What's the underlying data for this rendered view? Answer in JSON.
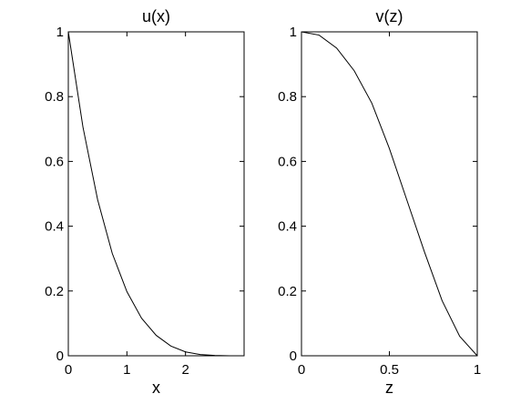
{
  "chart_data": [
    {
      "type": "line",
      "title": "u(x)",
      "x_label": "x",
      "x": [
        0,
        0.25,
        0.5,
        0.75,
        1,
        1.25,
        1.5,
        1.75,
        2,
        2.25,
        2.5,
        2.75,
        3
      ],
      "series": [
        {
          "color": "#000000",
          "values": [
            1,
            0.706,
            0.482,
            0.316,
            0.198,
            0.116,
            0.063,
            0.03,
            0.012,
            0.004,
            0.001,
            0,
            0
          ]
        }
      ],
      "xlim": [
        0,
        3
      ],
      "xticks": [
        0,
        1,
        2
      ],
      "ylim": [
        0,
        1
      ],
      "yticks": [
        0,
        0.2,
        0.4,
        0.6,
        0.8,
        1
      ]
    },
    {
      "type": "line",
      "title": "v(z)",
      "x_label": "z",
      "x": [
        0,
        0.1,
        0.2,
        0.3,
        0.4,
        0.5,
        0.6,
        0.7,
        0.8,
        0.9,
        1
      ],
      "series": [
        {
          "color": "#000000",
          "values": [
            1,
            0.99,
            0.95,
            0.88,
            0.78,
            0.64,
            0.48,
            0.32,
            0.17,
            0.06,
            0
          ]
        }
      ],
      "xlim": [
        0,
        1
      ],
      "xticks": [
        0,
        0.5,
        1
      ],
      "ylim": [
        0,
        1
      ],
      "yticks": [
        0,
        0.2,
        0.4,
        0.6,
        0.8,
        1
      ]
    }
  ]
}
